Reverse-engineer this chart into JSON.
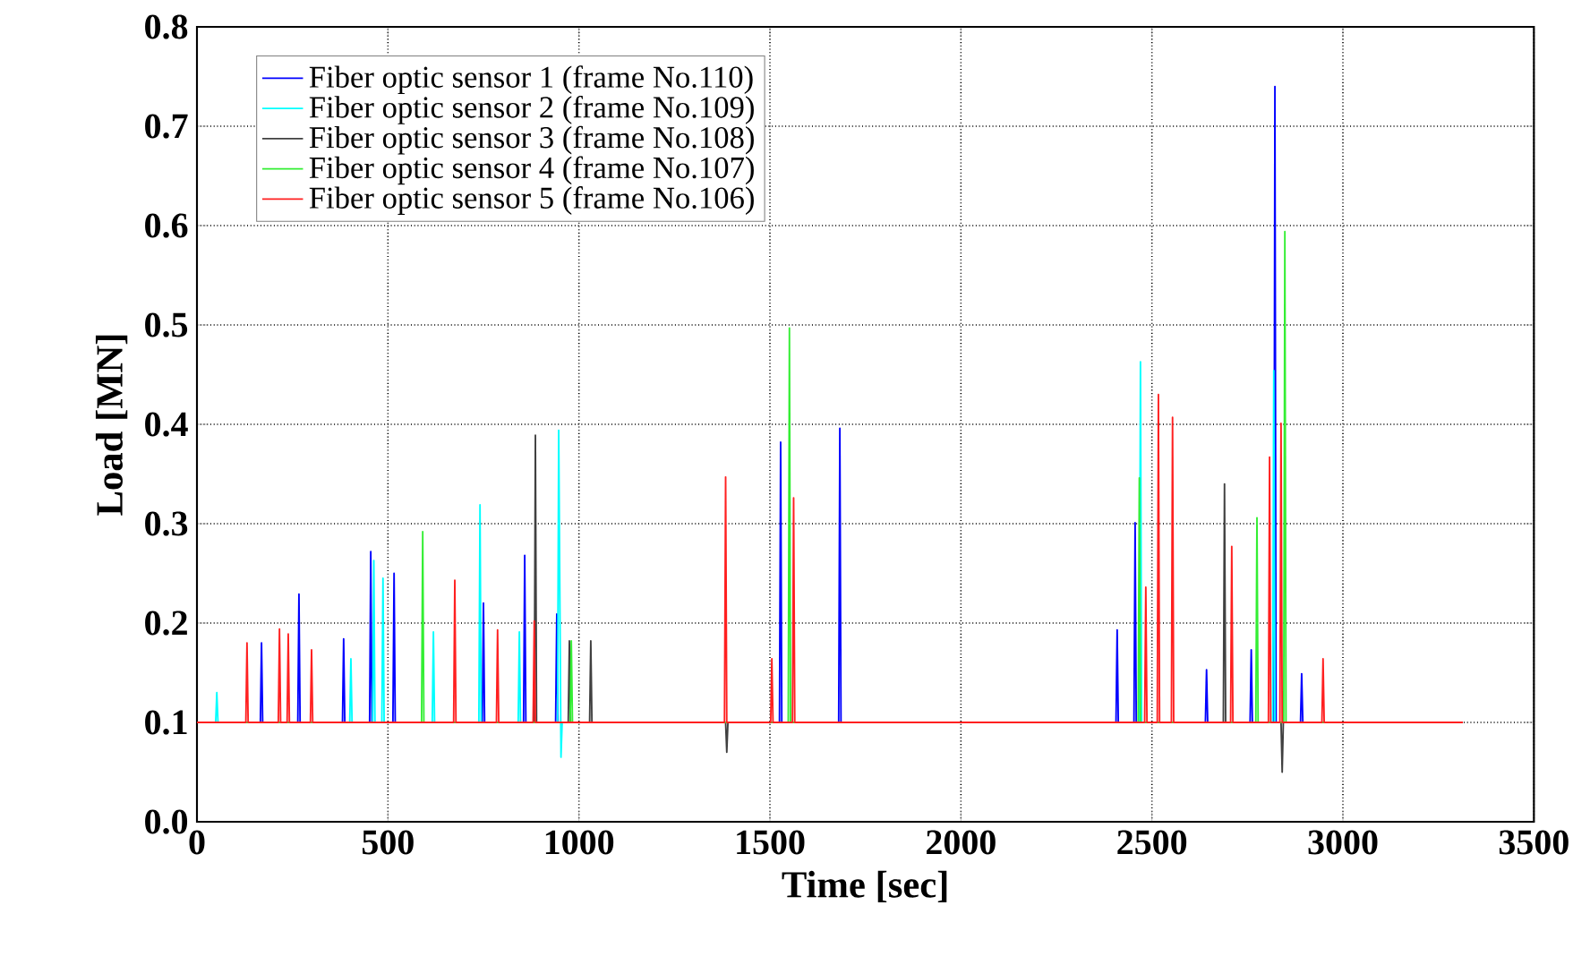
{
  "chart_data": {
    "type": "line",
    "xlabel": "Time [sec]",
    "ylabel": "Load [MN]",
    "xlim": [
      0,
      3500
    ],
    "xticks": [
      0,
      500,
      1000,
      1500,
      2000,
      2500,
      3000,
      3500
    ],
    "ylim": [
      0,
      0.8
    ],
    "yticks": [
      {
        "value": 0,
        "label": "0.0"
      },
      0.1,
      0.2,
      0.3,
      0.4,
      0.5,
      0.6,
      0.7,
      0.8
    ],
    "grid": true,
    "legend": "top left",
    "series": [
      {
        "name": "Fiber optic sensor 1 (frame No.110)",
        "color": "#0000ff",
        "x": [
          0,
          166,
          169,
          172,
          264,
          267,
          270,
          381,
          384,
          387,
          452,
          455,
          458,
          513,
          516,
          519,
          747,
          750,
          753,
          855,
          858,
          861,
          939,
          942,
          945,
          1525,
          1528,
          1531,
          1680,
          1683,
          1686,
          2406,
          2409,
          2412,
          2453,
          2456,
          2459,
          2640,
          2643,
          2646,
          2757,
          2760,
          2763,
          2819,
          2822,
          2825,
          2889,
          2892,
          2895,
          3314
        ],
        "values": [
          0.1,
          0.1,
          0.18,
          0.1,
          0.1,
          0.229,
          0.1,
          0.1,
          0.184,
          0.1,
          0.1,
          0.272,
          0.1,
          0.1,
          0.25,
          0.1,
          0.1,
          0.22,
          0.1,
          0.1,
          0.268,
          0.1,
          0.1,
          0.209,
          0.1,
          0.1,
          0.382,
          0.1,
          0.1,
          0.396,
          0.1,
          0.1,
          0.193,
          0.1,
          0.1,
          0.301,
          0.1,
          0.1,
          0.153,
          0.1,
          0.1,
          0.173,
          0.1,
          0.1,
          0.74,
          0.1,
          0.1,
          0.149,
          0.1,
          0.1
        ]
      },
      {
        "name": "Fiber optic sensor 2 (frame No.109)",
        "color": "#00ffff",
        "x": [
          0,
          49,
          52,
          55,
          400,
          403,
          406,
          460,
          463,
          466,
          484,
          487,
          490,
          616,
          619,
          622,
          738,
          741,
          744,
          841,
          844,
          847,
          944,
          947,
          953,
          956,
          2467,
          2470,
          2473,
          2816,
          2819,
          2822,
          3314
        ],
        "values": [
          0.1,
          0.1,
          0.13,
          0.1,
          0.1,
          0.164,
          0.1,
          0.1,
          0.263,
          0.1,
          0.1,
          0.245,
          0.1,
          0.1,
          0.191,
          0.1,
          0.1,
          0.319,
          0.1,
          0.1,
          0.191,
          0.1,
          0.1,
          0.394,
          0.065,
          0.1,
          0.1,
          0.463,
          0.1,
          0.1,
          0.454,
          0.1,
          0.1
        ]
      },
      {
        "name": "Fiber optic sensor 3 (frame No.108)",
        "color": "#404040",
        "x": [
          0,
          883,
          886,
          889,
          972,
          975,
          978,
          1028,
          1031,
          1034,
          1384,
          1387,
          1390,
          2687,
          2690,
          2693,
          2838,
          2841,
          2844,
          3314
        ],
        "values": [
          0.1,
          0.1,
          0.389,
          0.1,
          0.1,
          0.182,
          0.1,
          0.1,
          0.182,
          0.1,
          0.1,
          0.07,
          0.1,
          0.1,
          0.34,
          0.1,
          0.1,
          0.05,
          0.1,
          0.1
        ]
      },
      {
        "name": "Fiber optic sensor 4 (frame No.107)",
        "color": "#33ee33",
        "x": [
          0,
          588,
          591,
          594,
          977,
          980,
          983,
          1548,
          1551,
          1554,
          2464,
          2467,
          2470,
          2772,
          2775,
          2778,
          2845,
          2848,
          2851,
          3314
        ],
        "values": [
          0.1,
          0.1,
          0.292,
          0.1,
          0.1,
          0.182,
          0.1,
          0.1,
          0.497,
          0.1,
          0.1,
          0.346,
          0.1,
          0.1,
          0.306,
          0.1,
          0.1,
          0.594,
          0.1,
          0.1
        ]
      },
      {
        "name": "Fiber optic sensor 5 (frame No.106)",
        "color": "#ff2020",
        "x": [
          0,
          128,
          131,
          134,
          213,
          216,
          219,
          236,
          239,
          242,
          297,
          300,
          303,
          672,
          675,
          678,
          784,
          787,
          790,
          880,
          883,
          886,
          1381,
          1384,
          1387,
          1502,
          1505,
          1508,
          1559,
          1562,
          1565,
          2481,
          2484,
          2487,
          2514,
          2517,
          2520,
          2551,
          2554,
          2557,
          2706,
          2709,
          2712,
          2805,
          2808,
          2811,
          2835,
          2838,
          2841,
          2945,
          2948,
          2951,
          3314
        ],
        "values": [
          0.1,
          0.1,
          0.18,
          0.1,
          0.1,
          0.194,
          0.1,
          0.1,
          0.189,
          0.1,
          0.1,
          0.173,
          0.1,
          0.1,
          0.243,
          0.1,
          0.1,
          0.193,
          0.1,
          0.1,
          0.202,
          0.1,
          0.1,
          0.347,
          0.1,
          0.1,
          0.164,
          0.1,
          0.1,
          0.326,
          0.1,
          0.1,
          0.236,
          0.1,
          0.1,
          0.43,
          0.1,
          0.1,
          0.407,
          0.1,
          0.1,
          0.277,
          0.1,
          0.1,
          0.367,
          0.1,
          0.1,
          0.401,
          0.1,
          0.1,
          0.164,
          0.1,
          0.1
        ]
      }
    ]
  }
}
